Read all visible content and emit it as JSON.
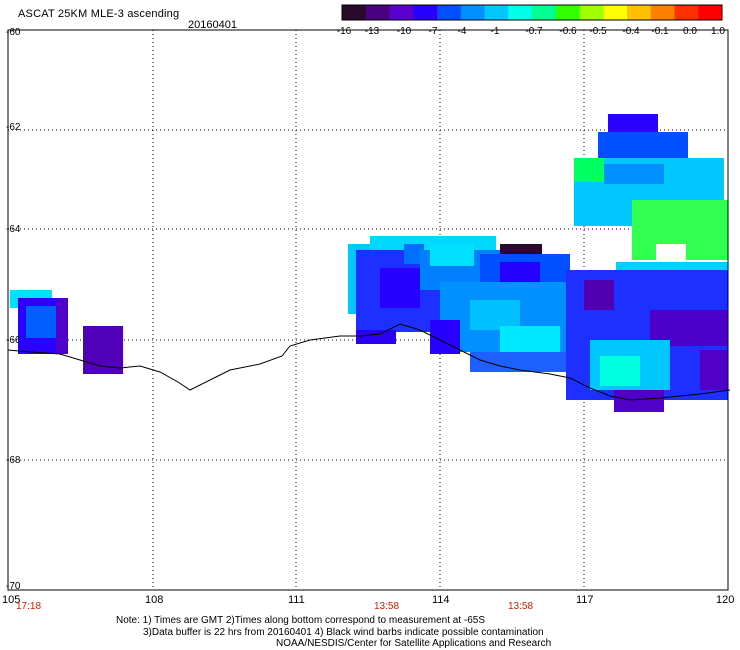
{
  "header": {
    "title": "ASCAT 25KM MLE-3 ascending",
    "date": "20160401"
  },
  "colorbar": {
    "labels": [
      "-16",
      "-13",
      "-10",
      "-7",
      "-4",
      "-1",
      "-0.7",
      "-0.6",
      "-0.5",
      "-0.4",
      "-0.1",
      "0.0",
      "1.0"
    ],
    "colors": [
      "#2a0a2a",
      "#4a0080",
      "#5a00d0",
      "#2800ff",
      "#0050ff",
      "#0090ff",
      "#00c8ff",
      "#00ffe8",
      "#00ff90",
      "#30ff00",
      "#a0ff00",
      "#ffff00",
      "#ffc000",
      "#ff8000",
      "#ff3000",
      "#ff0000"
    ]
  },
  "axes": {
    "x_ticks": [
      "105",
      "108",
      "111",
      "114",
      "117",
      "120"
    ],
    "y_ticks": [
      "-60",
      "-62",
      "-64",
      "-66",
      "-68",
      "-70"
    ]
  },
  "time_labels": [
    "17:18",
    "13:58",
    "13:58"
  ],
  "notes": {
    "line1": "Note: 1) Times are GMT 2)Times along bottom correspond to measurement at -65S",
    "line2": "3)Data buffer is 22 hrs from 20160401 4) Black wind barbs indicate possible contamination",
    "line3": "NOAA/NESDIS/Center for Satellite Applications and Research"
  },
  "colors": {
    "time_label": "#cc2200",
    "grid": "#000000"
  }
}
